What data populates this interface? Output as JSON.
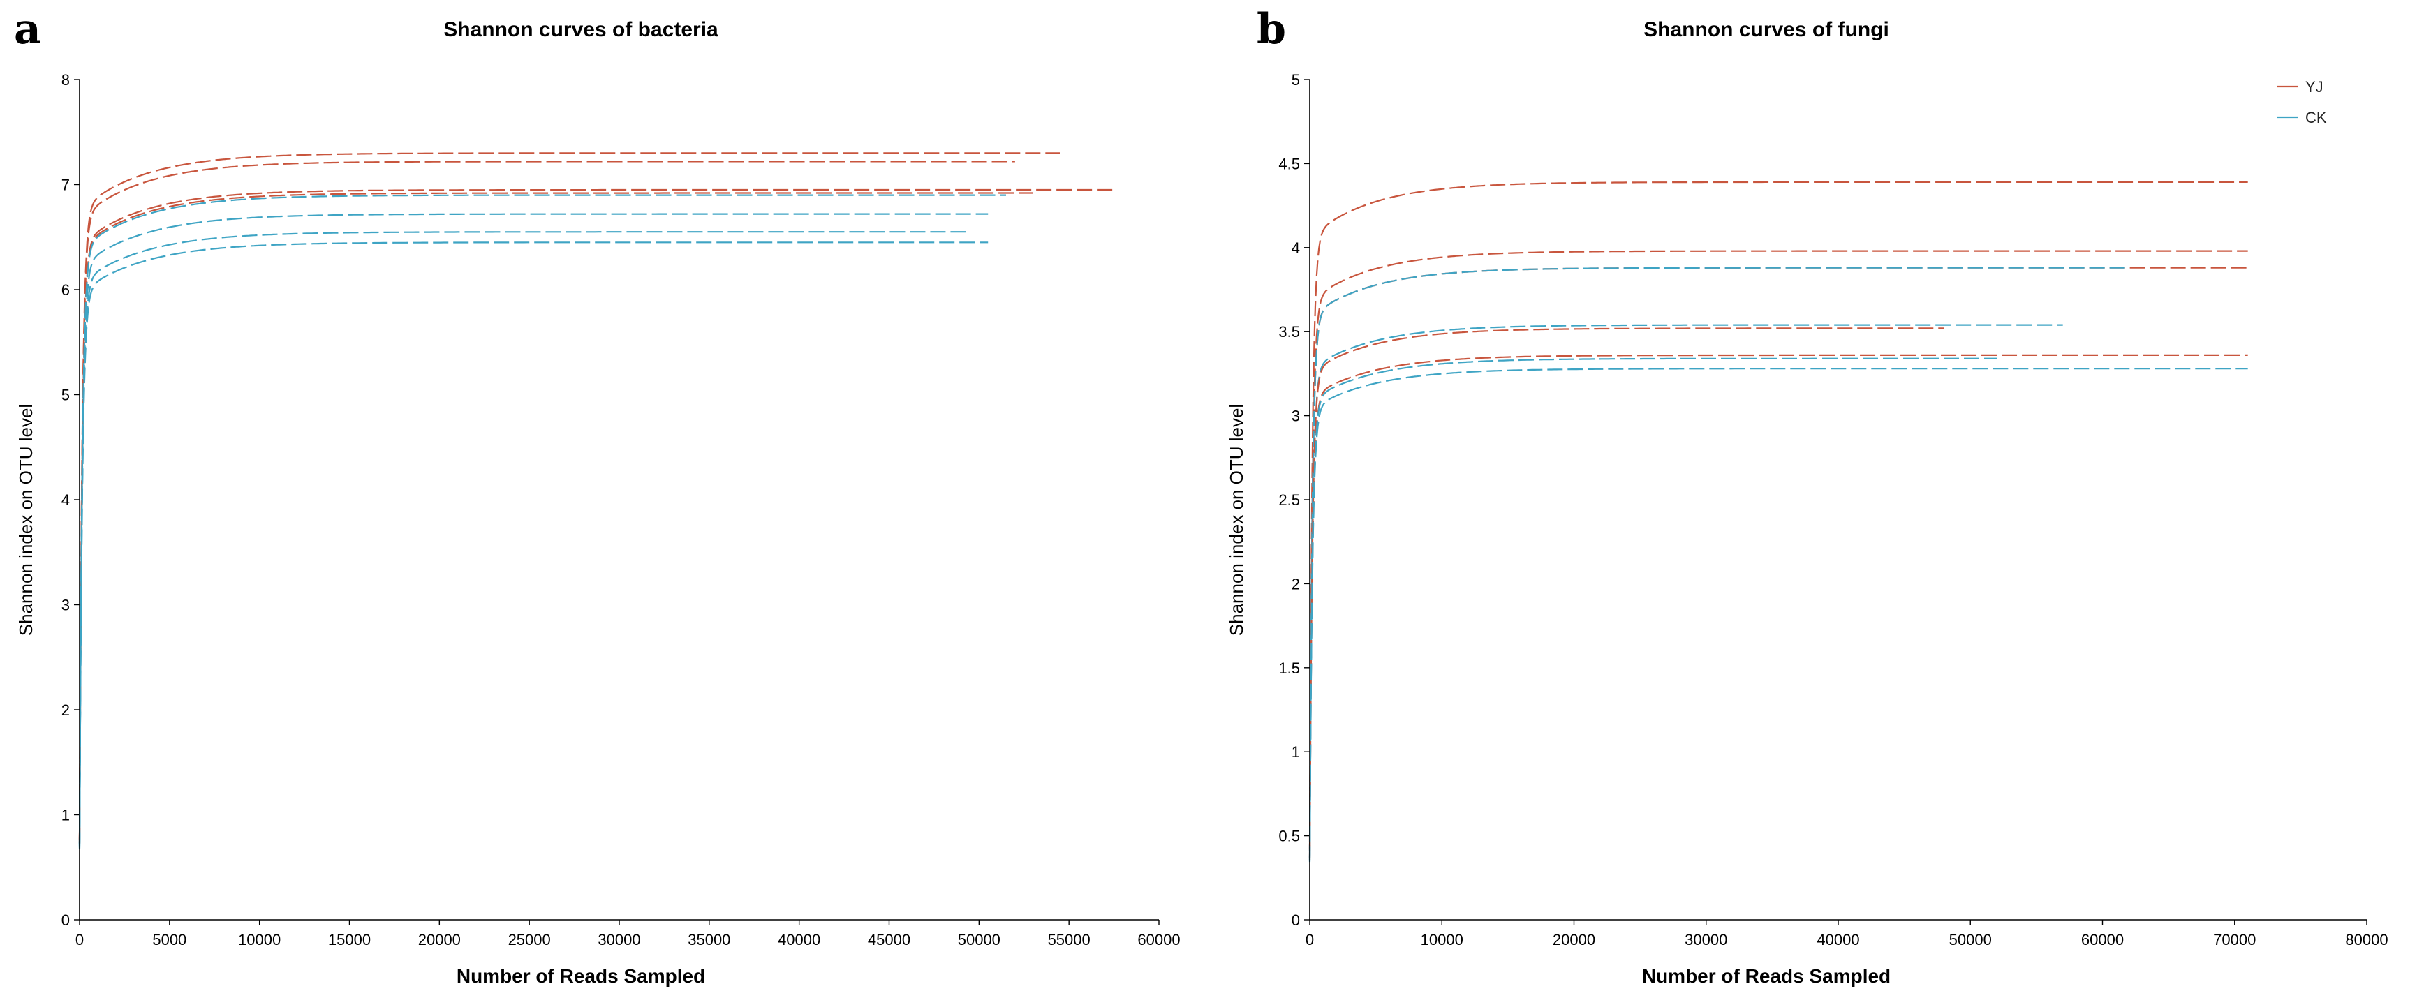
{
  "panels": [
    {
      "letter": "a",
      "chart_data": {
        "type": "line",
        "title": "Shannon curves of bacteria",
        "xlabel": "Number of Reads Sampled",
        "ylabel": "Shannon index on OTU level",
        "xlim": [
          0,
          60000
        ],
        "ylim": [
          0,
          8
        ],
        "xticks": [
          "0",
          "5000",
          "10000",
          "15000",
          "20000",
          "25000",
          "30000",
          "35000",
          "40000",
          "45000",
          "50000",
          "55000",
          "60000"
        ],
        "yticks": [
          "0",
          "1",
          "2",
          "3",
          "4",
          "5",
          "6",
          "7",
          "8"
        ],
        "series": [
          {
            "name": "YJ",
            "color": "#c8553d",
            "x_end": 54500,
            "plateau": 7.3
          },
          {
            "name": "YJ",
            "color": "#c8553d",
            "x_end": 52000,
            "plateau": 7.22
          },
          {
            "name": "YJ",
            "color": "#c8553d",
            "x_end": 57500,
            "plateau": 6.95
          },
          {
            "name": "YJ",
            "color": "#c8553d",
            "x_end": 53000,
            "plateau": 6.92
          },
          {
            "name": "CK",
            "color": "#3ea4c4",
            "x_end": 51500,
            "plateau": 6.9
          },
          {
            "name": "CK",
            "color": "#3ea4c4",
            "x_end": 50500,
            "plateau": 6.72
          },
          {
            "name": "CK",
            "color": "#3ea4c4",
            "x_end": 49500,
            "plateau": 6.55
          },
          {
            "name": "CK",
            "color": "#3ea4c4",
            "x_end": 50500,
            "plateau": 6.45
          }
        ]
      }
    },
    {
      "letter": "b",
      "chart_data": {
        "type": "line",
        "title": "Shannon curves of fungi",
        "xlabel": "Number of Reads Sampled",
        "ylabel": "Shannon index on OTU level",
        "xlim": [
          0,
          80000
        ],
        "ylim": [
          0,
          5
        ],
        "xticks": [
          "0",
          "10000",
          "20000",
          "30000",
          "40000",
          "50000",
          "60000",
          "70000",
          "80000"
        ],
        "yticks": [
          "0",
          "0.5",
          "1",
          "1.5",
          "2",
          "2.5",
          "3",
          "3.5",
          "4",
          "4.5",
          "5"
        ],
        "legend": [
          {
            "label": "YJ",
            "color": "#c8553d"
          },
          {
            "label": "CK",
            "color": "#3ea4c4"
          }
        ],
        "series": [
          {
            "name": "YJ",
            "color": "#c8553d",
            "x_end": 71000,
            "plateau": 4.39
          },
          {
            "name": "YJ",
            "color": "#c8553d",
            "x_end": 71000,
            "plateau": 3.98
          },
          {
            "name": "YJ",
            "color": "#c8553d",
            "x_end": 71000,
            "plateau": 3.88
          },
          {
            "name": "CK",
            "color": "#3ea4c4",
            "x_end": 62000,
            "plateau": 3.88
          },
          {
            "name": "CK",
            "color": "#3ea4c4",
            "x_end": 57000,
            "plateau": 3.54
          },
          {
            "name": "YJ",
            "color": "#c8553d",
            "x_end": 48000,
            "plateau": 3.52
          },
          {
            "name": "YJ",
            "color": "#c8553d",
            "x_end": 71000,
            "plateau": 3.36
          },
          {
            "name": "CK",
            "color": "#3ea4c4",
            "x_end": 52000,
            "plateau": 3.34
          },
          {
            "name": "CK",
            "color": "#3ea4c4",
            "x_end": 71000,
            "plateau": 3.28
          }
        ]
      }
    }
  ]
}
